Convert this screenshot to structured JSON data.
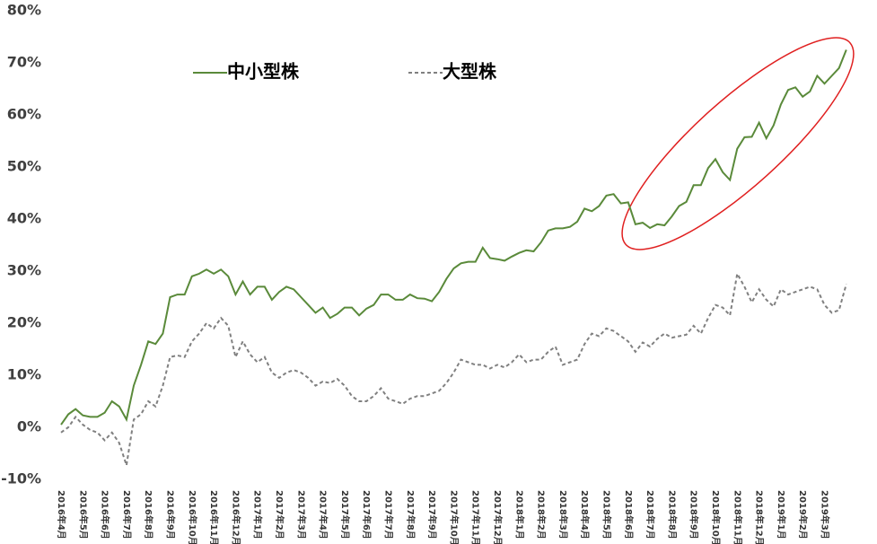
{
  "chart_data": {
    "type": "line",
    "categories": [
      "2016年4月",
      null,
      null,
      "2016年5月",
      null,
      null,
      "2016年6月",
      null,
      null,
      "2016年7月",
      null,
      null,
      "2016年8月",
      null,
      null,
      "2016年9月",
      null,
      null,
      "2016年10月",
      null,
      null,
      "2016年11月",
      null,
      null,
      "2016年12月",
      null,
      null,
      "2017年1月",
      null,
      null,
      "2017年2月",
      null,
      null,
      "2017年3月",
      null,
      null,
      "2017年4月",
      null,
      null,
      "2017年5月",
      null,
      null,
      "2017年6月",
      null,
      null,
      "2017年7月",
      null,
      null,
      "2017年8月",
      null,
      null,
      "2017年9月",
      null,
      null,
      "2017年10月",
      null,
      null,
      "2017年11月",
      null,
      null,
      "2017年12月",
      null,
      null,
      "2018年1月",
      null,
      null,
      "2018年2月",
      null,
      null,
      "2018年3月",
      null,
      null,
      "2018年4月",
      null,
      null,
      "2018年5月",
      null,
      null,
      "2018年6月",
      null,
      null,
      "2018年7月",
      null,
      null,
      "2018年8月",
      null,
      null,
      "2018年9月",
      null,
      null,
      "2018年10月",
      null,
      null,
      "2018年11月",
      null,
      null,
      "2018年12月",
      null,
      null,
      "2019年1月",
      null,
      null,
      "2019年2月",
      null,
      null,
      "2019年3月",
      null,
      null,
      null
    ],
    "series": [
      {
        "name": "中小型株",
        "color": "#5a8a3a",
        "dash": false,
        "values": [
          0.5,
          2.5,
          3.5,
          2.3,
          2,
          2,
          2.8,
          5,
          4,
          1.5,
          8,
          12,
          16.5,
          16,
          18,
          25,
          25.5,
          25.5,
          29,
          29.5,
          30.3,
          29.5,
          30.3,
          29,
          25.5,
          28,
          25.5,
          27,
          27,
          24.5,
          26,
          27,
          26.5,
          25,
          23.5,
          22,
          23,
          21,
          21.8,
          23,
          23,
          21.5,
          22.8,
          23.5,
          25.5,
          25.5,
          24.5,
          24.5,
          25.5,
          24.8,
          24.7,
          24.2,
          26,
          28.5,
          30.5,
          31.5,
          31.8,
          31.8,
          34.5,
          32.5,
          32.3,
          32,
          32.8,
          33.5,
          34,
          33.8,
          35.5,
          37.8,
          38.2,
          38.2,
          38.5,
          39.5,
          42,
          41.5,
          42.5,
          44.5,
          44.8,
          43,
          43.2,
          39,
          39.3,
          38.3,
          39,
          38.8,
          40.5,
          42.5,
          43.3,
          46.5,
          46.5,
          49.8,
          51.5,
          49,
          47.5,
          53.5,
          55.7,
          55.8,
          58.5,
          55.5,
          58,
          62,
          64.8,
          65.3,
          63.5,
          64.5,
          67.5,
          66,
          67.5,
          69,
          72.5
        ]
      },
      {
        "name": "大型株",
        "color": "#808080",
        "dash": true,
        "values": [
          -1,
          0,
          2,
          0.5,
          -0.5,
          -1,
          -2.5,
          -1,
          -3,
          -7.3,
          1.5,
          2.5,
          5,
          4,
          8,
          13.5,
          13.8,
          13.5,
          16.5,
          18,
          20,
          19,
          21,
          19.5,
          13.5,
          16.5,
          14,
          12.5,
          13.5,
          10.5,
          9.5,
          10.5,
          11,
          10.5,
          9.5,
          8,
          8.8,
          8.5,
          9.3,
          8,
          6,
          5,
          5,
          6,
          7.5,
          5.5,
          5,
          4.5,
          5.5,
          6,
          6,
          6.5,
          7,
          8.5,
          10.5,
          13,
          12.5,
          12,
          12,
          11.3,
          12,
          11.5,
          12.5,
          14,
          12.5,
          13,
          13,
          14.5,
          15.5,
          12,
          12.5,
          13,
          16,
          18,
          17.5,
          19,
          18.5,
          17.5,
          16.5,
          14.5,
          16.3,
          15.5,
          17,
          18,
          17.2,
          17.5,
          17.8,
          19.5,
          18,
          21,
          23.5,
          23,
          21.5,
          29.5,
          27,
          24,
          26.5,
          24.5,
          23.2,
          26.5,
          25.5,
          26,
          26.5,
          27,
          26.5,
          23.5,
          22,
          22.5,
          27.5
        ]
      }
    ],
    "ylim": [
      -10,
      80
    ],
    "yticks": [
      {
        "value": -10,
        "label": "-10%"
      },
      {
        "value": 0,
        "label": "0%"
      },
      {
        "value": 10,
        "label": "10%"
      },
      {
        "value": 20,
        "label": "20%"
      },
      {
        "value": 30,
        "label": "30%"
      },
      {
        "value": 40,
        "label": "40%"
      },
      {
        "value": 50,
        "label": "50%"
      },
      {
        "value": 60,
        "label": "60%"
      },
      {
        "value": 70,
        "label": "70%"
      },
      {
        "value": 80,
        "label": "80%"
      }
    ],
    "grid": false,
    "legend": "top"
  }
}
